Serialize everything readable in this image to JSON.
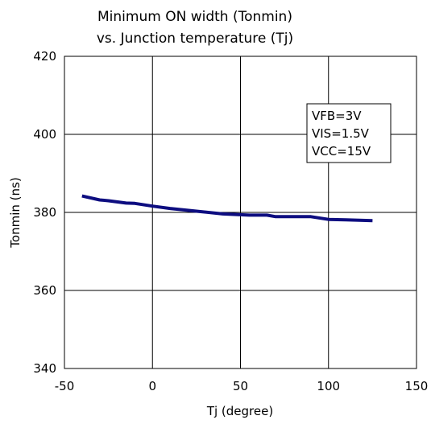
{
  "chart_data": {
    "type": "line",
    "title": [
      "Minimum ON width (Tonmin)",
      "vs. Junction temperature (Tj)"
    ],
    "xlabel": "Tj (degree)",
    "ylabel": "Tonmin (ns)",
    "xlim": [
      -50,
      150
    ],
    "ylim": [
      340,
      420
    ],
    "xticks": [
      -50,
      0,
      50,
      100,
      150
    ],
    "yticks": [
      340,
      360,
      380,
      400,
      420
    ],
    "xtick_labels": [
      "-50",
      "0",
      "50",
      "100",
      "150"
    ],
    "ytick_labels": [
      "340",
      "360",
      "380",
      "400",
      "420"
    ],
    "grid": true,
    "legend_box": {
      "placement": "top-right",
      "lines": [
        "VFB=3V",
        "VIS=1.5V",
        "VCC=15V"
      ]
    },
    "series": [
      {
        "color": "#0d0d80",
        "x": [
          -40,
          -30,
          -25,
          -15,
          -10,
          0,
          10,
          25,
          40,
          55,
          65,
          70,
          80,
          90,
          100,
          110,
          125
        ],
        "y": [
          384.2,
          383.2,
          383.0,
          382.4,
          382.3,
          381.6,
          381.0,
          380.3,
          379.6,
          379.3,
          379.3,
          378.9,
          378.9,
          378.9,
          378.2,
          378.1,
          377.9
        ]
      }
    ]
  }
}
